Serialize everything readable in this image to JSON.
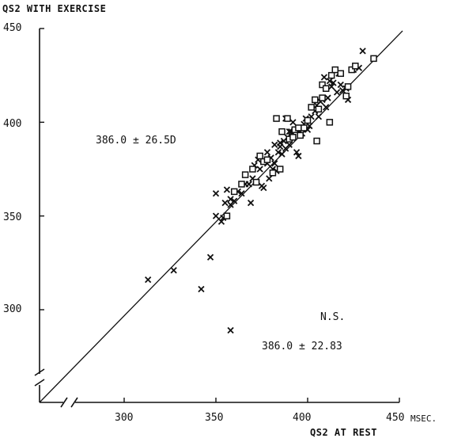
{
  "chart_data": {
    "type": "scatter",
    "ylabel": "QS2 WITH EXERCISE",
    "xlabel": "QS2 AT REST",
    "x_unit": "MSEC.",
    "xlim": [
      255,
      450
    ],
    "ylim": [
      255,
      450
    ],
    "x_ticks": [
      300,
      350,
      400,
      450
    ],
    "y_ticks": [
      300,
      350,
      400,
      450
    ],
    "axis_breaks": [
      "x",
      "y"
    ],
    "identity_line": true,
    "grid": false,
    "annotations": {
      "exercise_mean": "386.0 ± 26.5D",
      "rest_mean": "386.0 ± 22.83",
      "significance": "N.S."
    },
    "series": [
      {
        "marker": "x",
        "points": [
          [
            313,
            316
          ],
          [
            327,
            321
          ],
          [
            342,
            311
          ],
          [
            347,
            328
          ],
          [
            358,
            289
          ],
          [
            350,
            350
          ],
          [
            350,
            362
          ],
          [
            353,
            347
          ],
          [
            354,
            349
          ],
          [
            355,
            357
          ],
          [
            356,
            364
          ],
          [
            358,
            356
          ],
          [
            360,
            358
          ],
          [
            358,
            359
          ],
          [
            362,
            363
          ],
          [
            364,
            362
          ],
          [
            366,
            367
          ],
          [
            368,
            367
          ],
          [
            369,
            357
          ],
          [
            370,
            370
          ],
          [
            371,
            377
          ],
          [
            373,
            380
          ],
          [
            374,
            375
          ],
          [
            375,
            366
          ],
          [
            376,
            365
          ],
          [
            378,
            378
          ],
          [
            379,
            370
          ],
          [
            380,
            381
          ],
          [
            381,
            375
          ],
          [
            382,
            378
          ],
          [
            383,
            374
          ],
          [
            384,
            384
          ],
          [
            385,
            389
          ],
          [
            386,
            383
          ],
          [
            387,
            390
          ],
          [
            388,
            386
          ],
          [
            389,
            392
          ],
          [
            390,
            388
          ],
          [
            391,
            395
          ],
          [
            392,
            400
          ],
          [
            394,
            384
          ],
          [
            394,
            396
          ],
          [
            395,
            382
          ],
          [
            396,
            397
          ],
          [
            397,
            394
          ],
          [
            398,
            399
          ],
          [
            399,
            402
          ],
          [
            400,
            396
          ],
          [
            401,
            398
          ],
          [
            402,
            403
          ],
          [
            404,
            406
          ],
          [
            405,
            409
          ],
          [
            406,
            403
          ],
          [
            407,
            411
          ],
          [
            408,
            412
          ],
          [
            409,
            424
          ],
          [
            410,
            408
          ],
          [
            411,
            413
          ],
          [
            412,
            422
          ],
          [
            413,
            419
          ],
          [
            414,
            421
          ],
          [
            416,
            416
          ],
          [
            417,
            426
          ],
          [
            418,
            420
          ],
          [
            419,
            417
          ],
          [
            421,
            418
          ],
          [
            422,
            412
          ],
          [
            425,
            428
          ],
          [
            428,
            429
          ],
          [
            430,
            438
          ],
          [
            388,
            402
          ],
          [
            390,
            395
          ],
          [
            385,
            387
          ],
          [
            378,
            384
          ],
          [
            382,
            388
          ]
        ]
      },
      {
        "marker": "square",
        "points": [
          [
            356,
            350
          ],
          [
            360,
            363
          ],
          [
            364,
            367
          ],
          [
            366,
            372
          ],
          [
            370,
            375
          ],
          [
            372,
            368
          ],
          [
            374,
            382
          ],
          [
            376,
            379
          ],
          [
            378,
            380
          ],
          [
            381,
            373
          ],
          [
            383,
            402
          ],
          [
            385,
            375
          ],
          [
            386,
            395
          ],
          [
            389,
            402
          ],
          [
            390,
            391
          ],
          [
            392,
            392
          ],
          [
            393,
            396
          ],
          [
            395,
            397
          ],
          [
            396,
            393
          ],
          [
            398,
            397
          ],
          [
            400,
            401
          ],
          [
            402,
            408
          ],
          [
            404,
            412
          ],
          [
            405,
            390
          ],
          [
            406,
            407
          ],
          [
            408,
            420
          ],
          [
            410,
            418
          ],
          [
            412,
            400
          ],
          [
            413,
            425
          ],
          [
            415,
            428
          ],
          [
            418,
            426
          ],
          [
            421,
            414
          ],
          [
            422,
            419
          ],
          [
            424,
            428
          ],
          [
            426,
            430
          ],
          [
            436,
            434
          ],
          [
            408,
            413
          ]
        ]
      }
    ]
  }
}
